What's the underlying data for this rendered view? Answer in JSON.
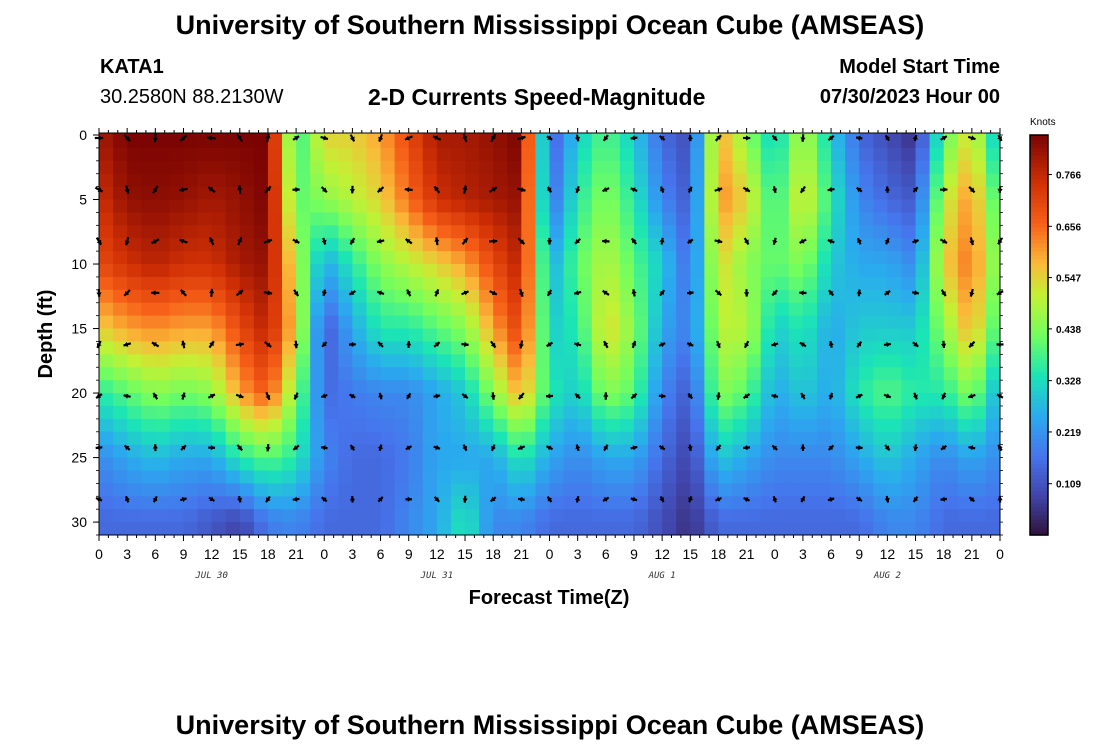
{
  "header": {
    "title": "University of Southern Mississippi Ocean Cube (AMSEAS)",
    "station": "KATA1",
    "coords": "30.2580N  88.2130W",
    "plot_title": "2-D Currents Speed-Magnitude",
    "start_label": "Model Start Time",
    "start_value": "07/30/2023 Hour 00"
  },
  "footer": {
    "title": "University of Southern Mississippi Ocean Cube (AMSEAS)"
  },
  "chart_data": {
    "type": "heatmap",
    "title": "2-D Currents Speed-Magnitude",
    "xlabel": "Forecast Time(Z)",
    "ylabel": "Depth (ft)",
    "xlim": [
      0,
      96
    ],
    "ylim": [
      0,
      31
    ],
    "x_tick_labels": [
      "0",
      "3",
      "6",
      "9",
      "12",
      "15",
      "18",
      "21",
      "0",
      "3",
      "6",
      "9",
      "12",
      "15",
      "18",
      "21",
      "0",
      "3",
      "6",
      "9",
      "12",
      "15",
      "18",
      "21",
      "0",
      "3",
      "6",
      "9",
      "12",
      "15",
      "18",
      "21",
      "0"
    ],
    "y_ticks": [
      0,
      5,
      10,
      15,
      20,
      25,
      30
    ],
    "date_labels": [
      {
        "label": "JUL 30",
        "hour": 12
      },
      {
        "label": "JUL 31",
        "hour": 36
      },
      {
        "label": "AUG 1",
        "hour": 60
      },
      {
        "label": "AUG 2",
        "hour": 84
      }
    ],
    "colorbar": {
      "label": "Knots",
      "range": [
        0,
        0.85
      ],
      "ticks": [
        0.109,
        0.219,
        0.328,
        0.438,
        0.547,
        0.656,
        0.766
      ]
    },
    "arrow_depths_ft": [
      0,
      4,
      8,
      12,
      16,
      20,
      24,
      28
    ],
    "arrow_hours": [
      0,
      3,
      6,
      9,
      12,
      15,
      18,
      21,
      24,
      27,
      30,
      33,
      36,
      39,
      42,
      45,
      48,
      51,
      54,
      57,
      60,
      63,
      66,
      69,
      72,
      75,
      78,
      81,
      84,
      87,
      90,
      93,
      96
    ],
    "speed_profile_note": "speed (knots) by hour (rows) at depths 0,5,10,15,20,25,30 ft",
    "speed_knots": [
      [
        0.8,
        0.75,
        0.7,
        0.55,
        0.35,
        0.2,
        0.15
      ],
      [
        0.85,
        0.82,
        0.75,
        0.6,
        0.4,
        0.25,
        0.15
      ],
      [
        0.85,
        0.83,
        0.78,
        0.62,
        0.45,
        0.28,
        0.15
      ],
      [
        0.85,
        0.82,
        0.75,
        0.6,
        0.42,
        0.25,
        0.15
      ],
      [
        0.85,
        0.8,
        0.75,
        0.6,
        0.45,
        0.25,
        0.12
      ],
      [
        0.85,
        0.82,
        0.8,
        0.7,
        0.6,
        0.35,
        0.08
      ],
      [
        0.85,
        0.85,
        0.82,
        0.78,
        0.68,
        0.4,
        0.18
      ],
      [
        0.35,
        0.4,
        0.5,
        0.55,
        0.45,
        0.35,
        0.2
      ],
      [
        0.55,
        0.45,
        0.25,
        0.12,
        0.15,
        0.2,
        0.15
      ],
      [
        0.55,
        0.5,
        0.35,
        0.25,
        0.18,
        0.15,
        0.15
      ],
      [
        0.6,
        0.55,
        0.45,
        0.35,
        0.2,
        0.15,
        0.15
      ],
      [
        0.7,
        0.65,
        0.5,
        0.35,
        0.2,
        0.18,
        0.2
      ],
      [
        0.8,
        0.75,
        0.55,
        0.4,
        0.25,
        0.25,
        0.25
      ],
      [
        0.8,
        0.78,
        0.6,
        0.45,
        0.3,
        0.25,
        0.35
      ],
      [
        0.82,
        0.8,
        0.7,
        0.6,
        0.45,
        0.25,
        0.2
      ],
      [
        0.85,
        0.82,
        0.78,
        0.72,
        0.6,
        0.35,
        0.2
      ],
      [
        0.12,
        0.15,
        0.25,
        0.3,
        0.35,
        0.25,
        0.15
      ],
      [
        0.3,
        0.35,
        0.4,
        0.35,
        0.3,
        0.2,
        0.15
      ],
      [
        0.4,
        0.45,
        0.5,
        0.55,
        0.45,
        0.25,
        0.15
      ],
      [
        0.3,
        0.35,
        0.4,
        0.45,
        0.4,
        0.25,
        0.15
      ],
      [
        0.15,
        0.2,
        0.3,
        0.25,
        0.2,
        0.15,
        0.1
      ],
      [
        0.1,
        0.12,
        0.15,
        0.18,
        0.12,
        0.08,
        0.05
      ],
      [
        0.6,
        0.62,
        0.55,
        0.5,
        0.45,
        0.3,
        0.15
      ],
      [
        0.45,
        0.55,
        0.45,
        0.5,
        0.4,
        0.25,
        0.15
      ],
      [
        0.3,
        0.35,
        0.4,
        0.3,
        0.25,
        0.2,
        0.15
      ],
      [
        0.5,
        0.55,
        0.45,
        0.35,
        0.3,
        0.2,
        0.15
      ],
      [
        0.3,
        0.35,
        0.3,
        0.25,
        0.25,
        0.2,
        0.15
      ],
      [
        0.15,
        0.2,
        0.25,
        0.3,
        0.35,
        0.25,
        0.15
      ],
      [
        0.1,
        0.15,
        0.25,
        0.3,
        0.4,
        0.3,
        0.2
      ],
      [
        0.05,
        0.12,
        0.2,
        0.3,
        0.35,
        0.25,
        0.2
      ],
      [
        0.4,
        0.5,
        0.55,
        0.45,
        0.35,
        0.2,
        0.15
      ],
      [
        0.55,
        0.62,
        0.65,
        0.6,
        0.45,
        0.25,
        0.15
      ],
      [
        0.25,
        0.35,
        0.4,
        0.35,
        0.25,
        0.2,
        0.15
      ]
    ]
  }
}
